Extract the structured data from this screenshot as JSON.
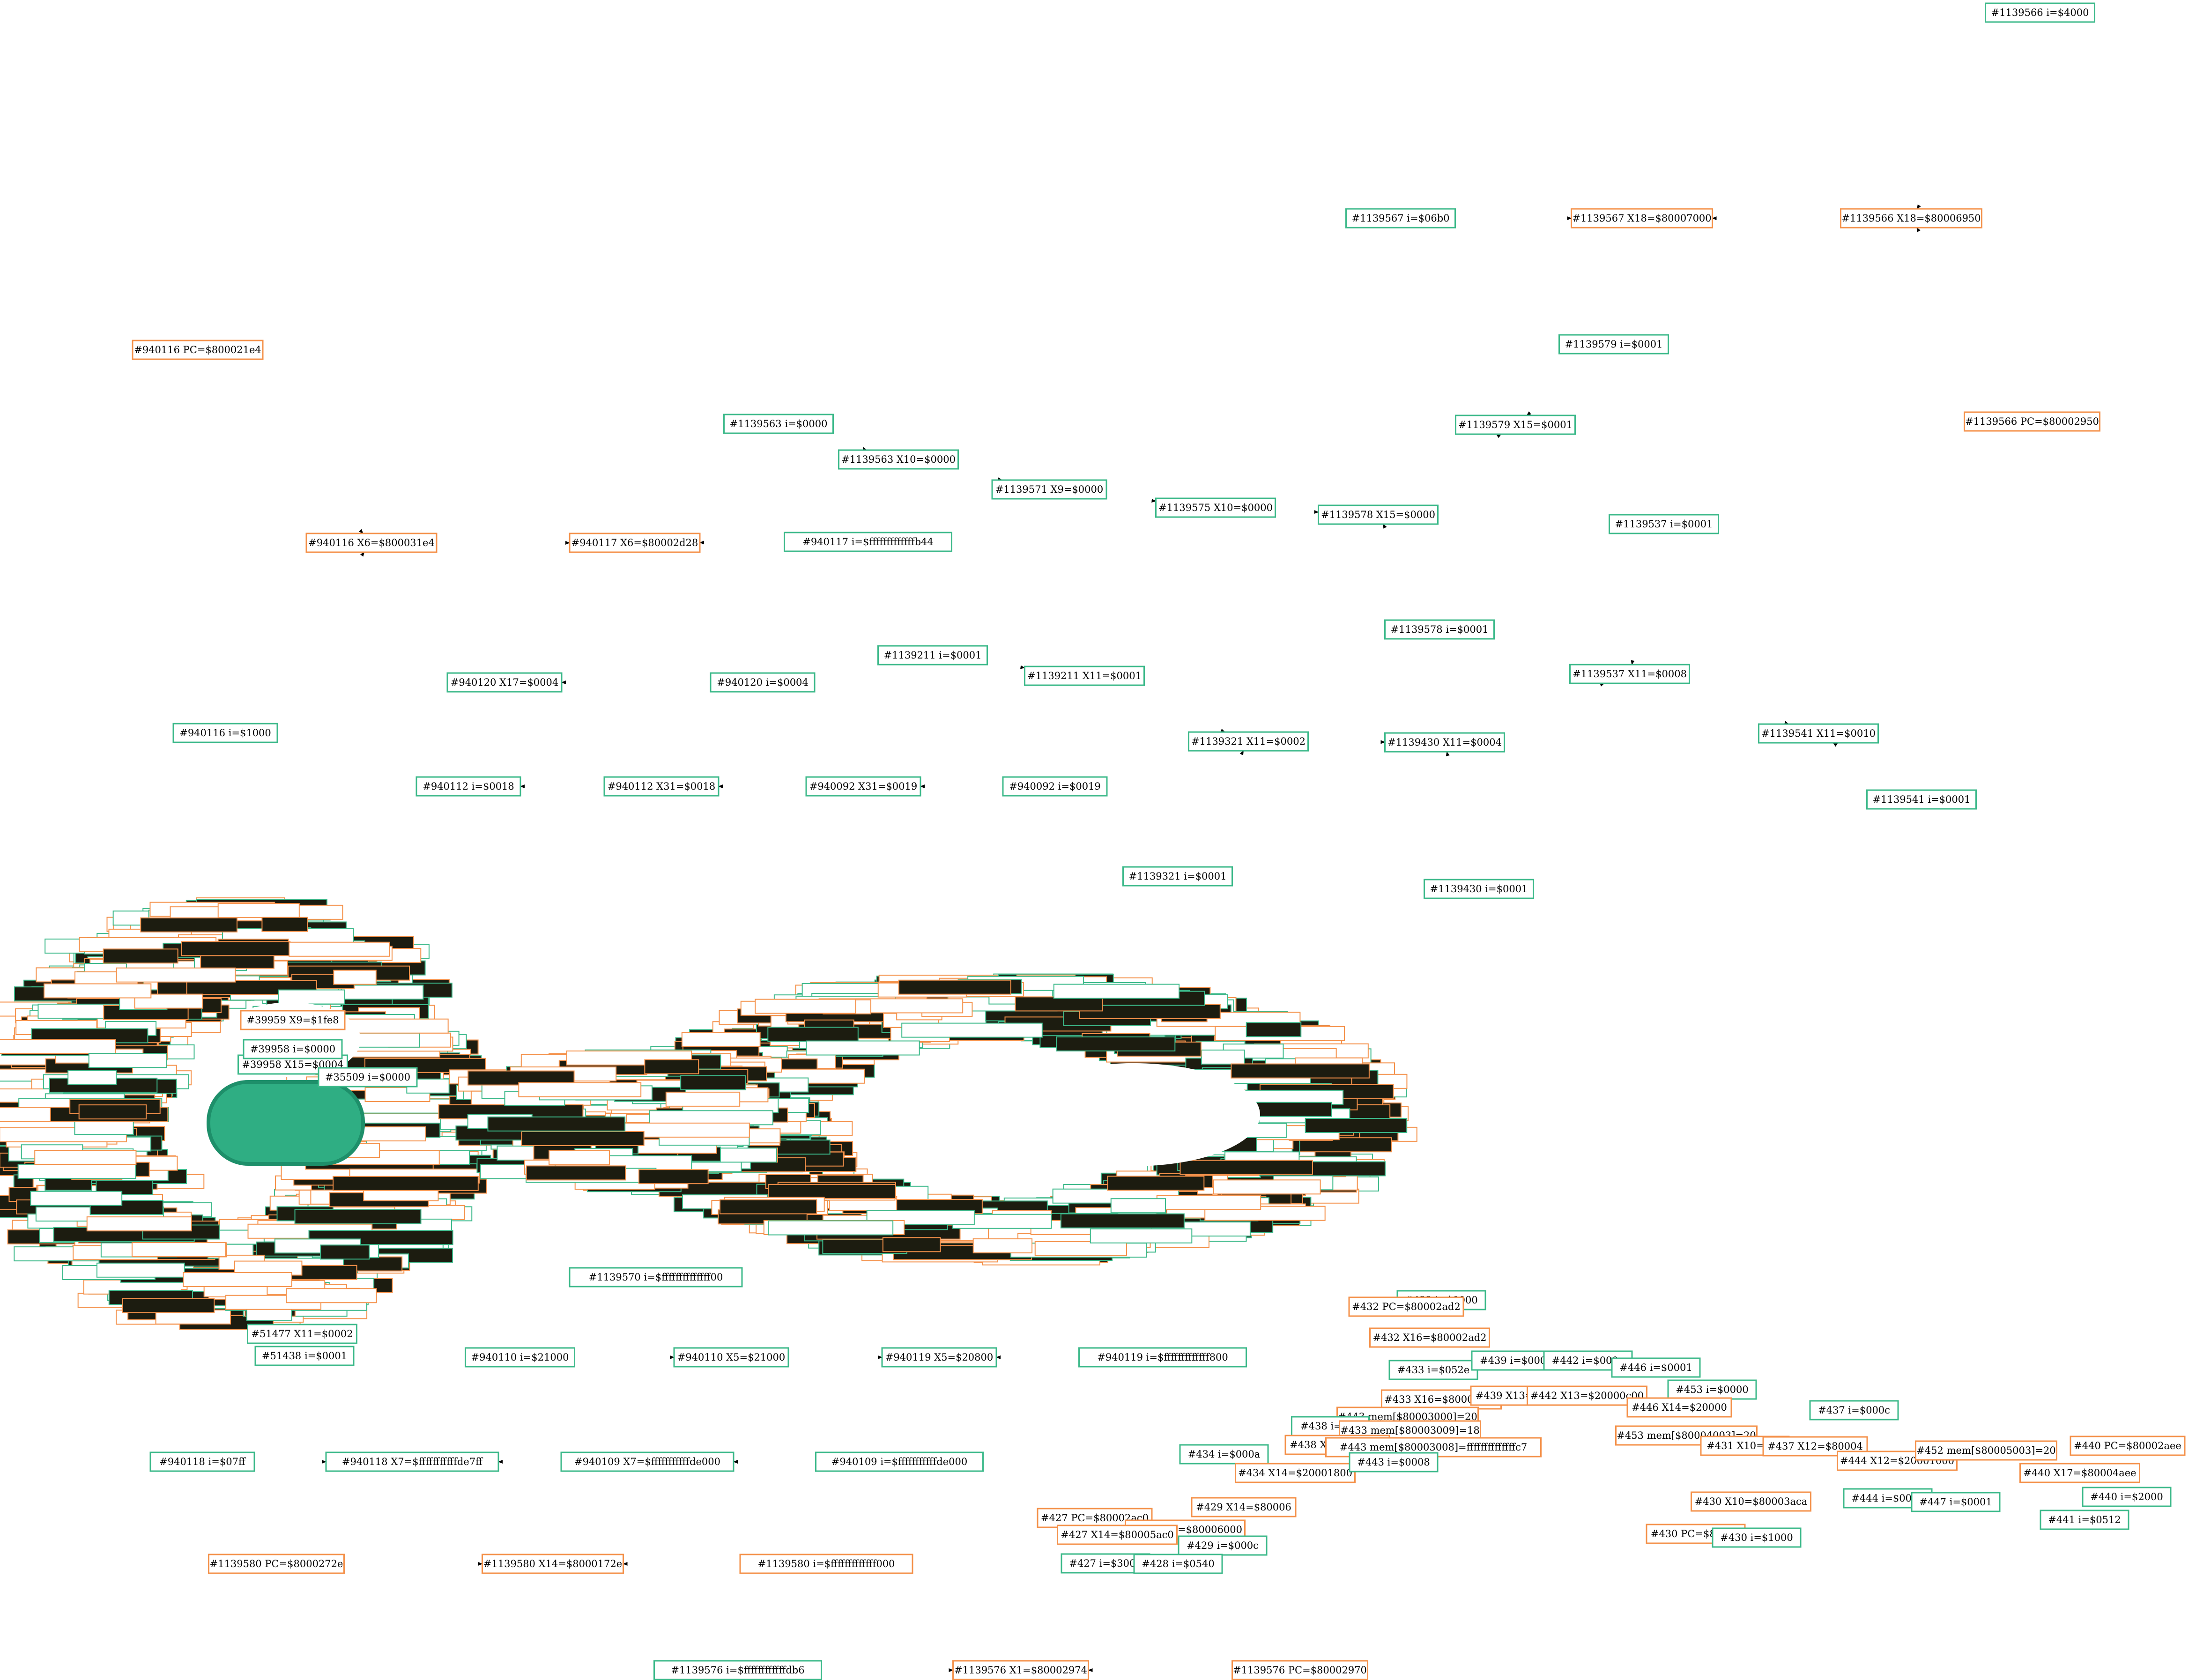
{
  "colors": {
    "imm": "#3cb98a",
    "reg": "#f4914a",
    "edge": "#000000",
    "cluster_dark": "#1c1c10"
  },
  "nodes": [
    {
      "id": "n1139566i",
      "label": "#1139566 i=$4000",
      "kind": "imm"
    },
    {
      "id": "n1139567i",
      "label": "#1139567 i=$06b0",
      "kind": "imm"
    },
    {
      "id": "n1139567x18",
      "label": "#1139567 X18=$80007000",
      "kind": "reg"
    },
    {
      "id": "n1139566x18",
      "label": "#1139566 X18=$80006950",
      "kind": "reg"
    },
    {
      "id": "n1139566pc",
      "label": "#1139566 PC=$80002950",
      "kind": "reg"
    },
    {
      "id": "n940116pc",
      "label": "#940116 PC=$800021e4",
      "kind": "reg"
    },
    {
      "id": "n940116x6",
      "label": "#940116 X6=$800031e4",
      "kind": "reg"
    },
    {
      "id": "n940117x6",
      "label": "#940117 X6=$80002d28",
      "kind": "reg"
    },
    {
      "id": "n940117i",
      "label": "#940117 i=$fffffffffffffb44",
      "kind": "imm"
    },
    {
      "id": "n940116i",
      "label": "#940116 i=$1000",
      "kind": "imm"
    },
    {
      "id": "n1139579i",
      "label": "#1139579 i=$0001",
      "kind": "imm"
    },
    {
      "id": "n1139563i",
      "label": "#1139563 i=$0000",
      "kind": "imm"
    },
    {
      "id": "n1139563x10",
      "label": "#1139563 X10=$0000",
      "kind": "imm"
    },
    {
      "id": "n1139579x15",
      "label": "#1139579 X15=$0001",
      "kind": "imm"
    },
    {
      "id": "n1139571x9",
      "label": "#1139571 X9=$0000",
      "kind": "imm"
    },
    {
      "id": "n1139575x10",
      "label": "#1139575 X10=$0000",
      "kind": "imm"
    },
    {
      "id": "n1139578x15",
      "label": "#1139578 X15=$0000",
      "kind": "imm"
    },
    {
      "id": "n1139578i",
      "label": "#1139578 i=$0001",
      "kind": "imm"
    },
    {
      "id": "n1139537i",
      "label": "#1139537 i=$0001",
      "kind": "imm"
    },
    {
      "id": "n1139211i",
      "label": "#1139211 i=$0001",
      "kind": "imm"
    },
    {
      "id": "n1139211x11",
      "label": "#1139211 X11=$0001",
      "kind": "imm"
    },
    {
      "id": "n940120x17",
      "label": "#940120 X17=$0004",
      "kind": "imm"
    },
    {
      "id": "n940120i",
      "label": "#940120 i=$0004",
      "kind": "imm"
    },
    {
      "id": "n1139537x11",
      "label": "#1139537 X11=$0008",
      "kind": "imm"
    },
    {
      "id": "n1139321x11",
      "label": "#1139321 X11=$0002",
      "kind": "imm"
    },
    {
      "id": "n1139430x11",
      "label": "#1139430 X11=$0004",
      "kind": "imm"
    },
    {
      "id": "n1139541x11",
      "label": "#1139541 X11=$0010",
      "kind": "imm"
    },
    {
      "id": "n940112i",
      "label": "#940112 i=$0018",
      "kind": "imm"
    },
    {
      "id": "n940112x31",
      "label": "#940112 X31=$0018",
      "kind": "imm"
    },
    {
      "id": "n940092x31",
      "label": "#940092 X31=$0019",
      "kind": "imm"
    },
    {
      "id": "n940092i",
      "label": "#940092 i=$0019",
      "kind": "imm"
    },
    {
      "id": "n1139541i",
      "label": "#1139541 i=$0001",
      "kind": "imm"
    },
    {
      "id": "n1139321i",
      "label": "#1139321 i=$0001",
      "kind": "imm"
    },
    {
      "id": "n1139430i",
      "label": "#1139430 i=$0001",
      "kind": "imm"
    },
    {
      "id": "n940110i",
      "label": "#940110 i=$21000",
      "kind": "imm"
    },
    {
      "id": "n940110x5",
      "label": "#940110 X5=$21000",
      "kind": "imm"
    },
    {
      "id": "n940119x5",
      "label": "#940119 X5=$20800",
      "kind": "imm"
    },
    {
      "id": "n940119i",
      "label": "#940119 i=$fffffffffffff800",
      "kind": "imm"
    },
    {
      "id": "n940118i",
      "label": "#940118 i=$07ff",
      "kind": "imm"
    },
    {
      "id": "n940118x7",
      "label": "#940118 X7=$fffffffffffde7ff",
      "kind": "imm"
    },
    {
      "id": "n940109x7",
      "label": "#940109 X7=$fffffffffffde000",
      "kind": "imm"
    },
    {
      "id": "n940109i",
      "label": "#940109 i=$fffffffffffde000",
      "kind": "imm"
    },
    {
      "id": "n1139580pc",
      "label": "#1139580 PC=$8000272e",
      "kind": "reg"
    },
    {
      "id": "n1139580x14",
      "label": "#1139580 X14=$8000172e",
      "kind": "reg"
    },
    {
      "id": "n1139580i",
      "label": "#1139580 i=$fffffffffffff000",
      "kind": "reg"
    },
    {
      "id": "n1139576i",
      "label": "#1139576 i=$ffffffffffffdb6",
      "kind": "imm"
    },
    {
      "id": "n1139576x1",
      "label": "#1139576 X1=$80002974",
      "kind": "reg"
    },
    {
      "id": "n1139576pc",
      "label": "#1139576 PC=$80002970",
      "kind": "reg"
    },
    {
      "id": "n432i",
      "label": "#432 i=$0000",
      "kind": "imm"
    },
    {
      "id": "n432pc",
      "label": "#432 PC=$80002ad2",
      "kind": "reg"
    },
    {
      "id": "n432x16",
      "label": "#432 X16=$80002ad2",
      "kind": "reg"
    },
    {
      "id": "n433i",
      "label": "#433 i=$052e",
      "kind": "imm"
    },
    {
      "id": "n439i",
      "label": "#439 i=$000c",
      "kind": "imm"
    },
    {
      "id": "n442i",
      "label": "#442 i=$000a",
      "kind": "imm"
    },
    {
      "id": "n446i",
      "label": "#446 i=$0001",
      "kind": "imm"
    },
    {
      "id": "n433x16",
      "label": "#433 X16=$80003000",
      "kind": "reg"
    },
    {
      "id": "n439x13",
      "label": "#439 X13=$8000",
      "kind": "reg"
    },
    {
      "id": "n442x13",
      "label": "#442 X13=$20000c00",
      "kind": "reg"
    },
    {
      "id": "n453i",
      "label": "#453 i=$0000",
      "kind": "imm"
    },
    {
      "id": "n437i",
      "label": "#437 i=$000c",
      "kind": "imm"
    },
    {
      "id": "n443mem",
      "label": "#443 mem[$80003000]=20",
      "kind": "reg"
    },
    {
      "id": "n438i",
      "label": "#438 i=$0a",
      "kind": "imm"
    },
    {
      "id": "n433mem",
      "label": "#433 mem[$80003009]=18",
      "kind": "reg"
    },
    {
      "id": "n438x13",
      "label": "#438 X13=$20000",
      "kind": "reg"
    },
    {
      "id": "n443b",
      "label": "#443 mem[$80003008]=ffffffffffffffc7",
      "kind": "reg"
    },
    {
      "id": "n446x14",
      "label": "#446 X14=$20000",
      "kind": "reg"
    },
    {
      "id": "n453mem",
      "label": "#453 mem[$80004003]=20",
      "kind": "reg"
    },
    {
      "id": "n431x10",
      "label": "#431 X10=$80",
      "kind": "reg"
    },
    {
      "id": "n437x12",
      "label": "#437 X12=$80004",
      "kind": "reg"
    },
    {
      "id": "n434i",
      "label": "#434 i=$000a",
      "kind": "imm"
    },
    {
      "id": "n434x14",
      "label": "#434 X14=$20001800",
      "kind": "reg"
    },
    {
      "id": "n443i",
      "label": "#443 i=$0008",
      "kind": "imm"
    },
    {
      "id": "n444x12",
      "label": "#444 X12=$20001000",
      "kind": "reg"
    },
    {
      "id": "n452mem",
      "label": "#452 mem[$80005003]=20",
      "kind": "reg"
    },
    {
      "id": "n440pc",
      "label": "#440 PC=$80002aee",
      "kind": "reg"
    },
    {
      "id": "n440x17",
      "label": "#440 X17=$80004aee",
      "kind": "reg"
    },
    {
      "id": "n444i",
      "label": "#444 i=$0001",
      "kind": "imm"
    },
    {
      "id": "n447i",
      "label": "#447 i=$0001",
      "kind": "imm"
    },
    {
      "id": "n440i",
      "label": "#440 i=$2000",
      "kind": "imm"
    },
    {
      "id": "n441i",
      "label": "#441 i=$0512",
      "kind": "imm"
    },
    {
      "id": "n429x14",
      "label": "#429 X14=$80006",
      "kind": "reg"
    },
    {
      "id": "n430x10",
      "label": "#430 X10=$80003aca",
      "kind": "reg"
    },
    {
      "id": "n427pc",
      "label": "#427 PC=$80002ac0",
      "kind": "reg"
    },
    {
      "id": "n428x14",
      "label": "#428 X14=$80006000",
      "kind": "reg"
    },
    {
      "id": "n427x14",
      "label": "#427 X14=$80005ac0",
      "kind": "reg"
    },
    {
      "id": "n429i",
      "label": "#429 i=$000c",
      "kind": "imm"
    },
    {
      "id": "n430pc",
      "label": "#430 PC=$80002",
      "kind": "reg"
    },
    {
      "id": "n430i",
      "label": "#430 i=$1000",
      "kind": "imm"
    },
    {
      "id": "n427i",
      "label": "#427 i=$3000",
      "kind": "imm"
    },
    {
      "id": "n428i",
      "label": "#428 i=$0540",
      "kind": "imm"
    },
    {
      "id": "n39958x15",
      "label": "#39958 X15=$0004",
      "kind": "imm"
    },
    {
      "id": "n39958i",
      "label": "#39958 i=$0000",
      "kind": "imm"
    },
    {
      "id": "n35509i",
      "label": "#35509 i=$0000",
      "kind": "imm"
    },
    {
      "id": "n39959x9",
      "label": "#39959 X9=$1fe8",
      "kind": "reg"
    },
    {
      "id": "n51438i",
      "label": "#51438 i=$0001",
      "kind": "imm"
    },
    {
      "id": "n51477x11",
      "label": "#51477 X11=$0002",
      "kind": "imm"
    },
    {
      "id": "n1139570i",
      "label": "#1139570 i=$ffffffffffffff00",
      "kind": "imm"
    }
  ],
  "edges": [
    [
      "n1139566i",
      "n1139566x18"
    ],
    [
      "n1139567i",
      "n1139567x18"
    ],
    [
      "n1139566x18",
      "n1139567x18"
    ],
    [
      "n1139566pc",
      "n1139566x18"
    ],
    [
      "n940116pc",
      "n940116x6"
    ],
    [
      "n940116x6",
      "n940117x6"
    ],
    [
      "n940117i",
      "n940117x6"
    ],
    [
      "n940116i",
      "n940116x6"
    ],
    [
      "n1139579i",
      "n1139579x15"
    ],
    [
      "n1139563i",
      "n1139563x10"
    ],
    [
      "n1139563x10",
      "n1139571x9"
    ],
    [
      "n1139571x9",
      "n1139575x10"
    ],
    [
      "n1139575x10",
      "n1139578x15"
    ],
    [
      "n1139578x15",
      "n1139579x15"
    ],
    [
      "n1139578i",
      "n1139578x15"
    ],
    [
      "n1139537i",
      "n1139537x11"
    ],
    [
      "n1139211i",
      "n1139211x11"
    ],
    [
      "n1139211x11",
      "n1139321x11"
    ],
    [
      "n940120i",
      "n940120x17"
    ],
    [
      "n1139321x11",
      "n1139430x11"
    ],
    [
      "n1139430x11",
      "n1139537x11"
    ],
    [
      "n1139537x11",
      "n1139541x11"
    ],
    [
      "n1139541i",
      "n1139541x11"
    ],
    [
      "n1139321i",
      "n1139321x11"
    ],
    [
      "n1139430i",
      "n1139430x11"
    ],
    [
      "n940112x31",
      "n940112i"
    ],
    [
      "n940092x31",
      "n940112x31"
    ],
    [
      "n940092i",
      "n940092x31"
    ],
    [
      "n940110i",
      "n940110x5"
    ],
    [
      "n940110x5",
      "n940119x5"
    ],
    [
      "n940119i",
      "n940119x5"
    ],
    [
      "n940118i",
      "n940118x7"
    ],
    [
      "n940109x7",
      "n940118x7"
    ],
    [
      "n940109i",
      "n940109x7"
    ],
    [
      "n1139580pc",
      "n1139580x14"
    ],
    [
      "n1139580i",
      "n1139580x14"
    ],
    [
      "n1139576i",
      "n1139576x1"
    ],
    [
      "n1139576pc",
      "n1139576x1"
    ]
  ]
}
